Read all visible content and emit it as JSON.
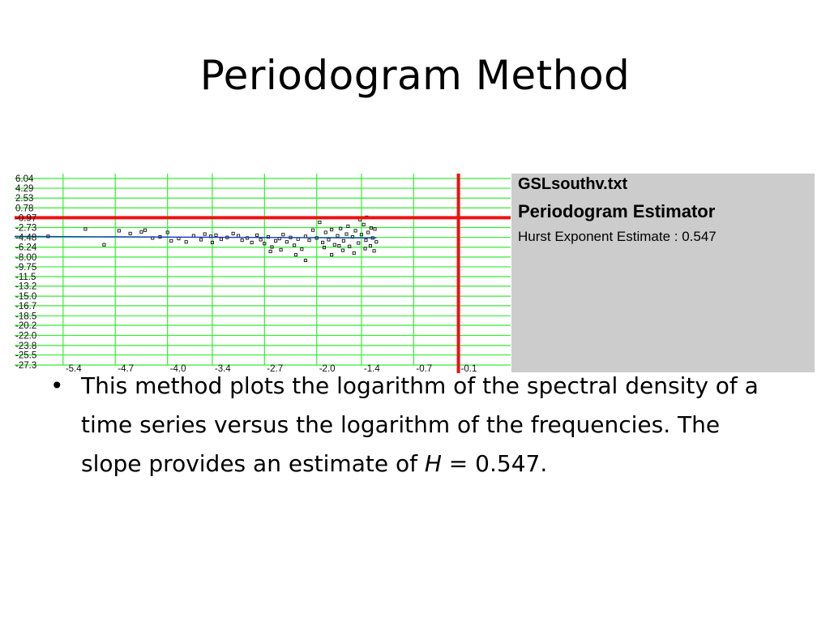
{
  "slide": {
    "title": "Periodogram Method"
  },
  "info_panel": {
    "filename": "GSLsouthv.txt",
    "method": "Periodogram Estimator",
    "result": "Hurst Exponent Estimate : 0.547"
  },
  "bullet": {
    "marker": "•",
    "text_before": "This method plots the logarithm of the spectral density of a time series versus the logarithm of the frequencies. The slope provides an estimate of ",
    "h_symbol": "H",
    "text_after": " = 0.547."
  },
  "chart_data": {
    "type": "scatter",
    "x_tick_labels": [
      "-5.4",
      "-4.7",
      "-4.0",
      "-3.4",
      "-2.7",
      "-2.0",
      "-1.4",
      "-0.7",
      "-0.1"
    ],
    "x_tick_values": [
      -5.4,
      -4.7,
      -4.0,
      -3.4,
      -2.7,
      -2.0,
      -1.4,
      -0.7,
      -0.1
    ],
    "y_tick_labels": [
      "6.04",
      "4.29",
      "2.53",
      "0.78",
      "-0.97",
      "-2.73",
      "-4.48",
      "-6.24",
      "-8.00",
      "-9.75",
      "-11.5",
      "-13.2",
      "-15.0",
      "-16.7",
      "-18.5",
      "-20.2",
      "-22.0",
      "-23.8",
      "-25.5",
      "-27.3"
    ],
    "xlim": [
      -6.05,
      0.6
    ],
    "ylim": [
      -27.3,
      6.04
    ],
    "grid": true,
    "crosshair": {
      "x": -0.1,
      "y": -0.97
    },
    "fit_line": [
      [
        -6.05,
        -4.3
      ],
      [
        -1.2,
        -4.6
      ]
    ],
    "points": [
      [
        -5.6,
        -4.3
      ],
      [
        -5.1,
        -3.0
      ],
      [
        -4.85,
        -5.8
      ],
      [
        -4.65,
        -3.3
      ],
      [
        -4.5,
        -3.8
      ],
      [
        -4.35,
        -3.5
      ],
      [
        -4.2,
        -4.6
      ],
      [
        -4.1,
        -4.4
      ],
      [
        -4.0,
        -3.6
      ],
      [
        -3.95,
        -5.1
      ],
      [
        -3.85,
        -4.7
      ],
      [
        -3.75,
        -5.3
      ],
      [
        -3.65,
        -4.2
      ],
      [
        -3.55,
        -4.9
      ],
      [
        -3.5,
        -3.9
      ],
      [
        -3.42,
        -4.3
      ],
      [
        -3.35,
        -4.1
      ],
      [
        -3.28,
        -4.8
      ],
      [
        -3.2,
        -4.5
      ],
      [
        -3.12,
        -3.8
      ],
      [
        -3.05,
        -4.2
      ],
      [
        -3.0,
        -5.0
      ],
      [
        -2.93,
        -4.6
      ],
      [
        -2.87,
        -5.4
      ],
      [
        -2.8,
        -4.1
      ],
      [
        -2.75,
        -4.9
      ],
      [
        -2.7,
        -5.6
      ],
      [
        -2.65,
        -4.4
      ],
      [
        -2.6,
        -6.2
      ],
      [
        -2.55,
        -5.1
      ],
      [
        -2.5,
        -4.7
      ],
      [
        -2.45,
        -4.0
      ],
      [
        -2.4,
        -5.3
      ],
      [
        -2.35,
        -4.5
      ],
      [
        -2.3,
        -5.9
      ],
      [
        -2.25,
        -4.8
      ],
      [
        -2.2,
        -6.6
      ],
      [
        -2.15,
        -4.3
      ],
      [
        -2.1,
        -5.0
      ],
      [
        -2.05,
        -3.2
      ],
      [
        -2.0,
        -4.6
      ],
      [
        -1.96,
        -1.8
      ],
      [
        -1.92,
        -5.4
      ],
      [
        -1.88,
        -3.6
      ],
      [
        -1.84,
        -4.9
      ],
      [
        -1.8,
        -3.1
      ],
      [
        -1.76,
        -5.8
      ],
      [
        -1.72,
        -4.2
      ],
      [
        -1.68,
        -2.9
      ],
      [
        -1.64,
        -5.1
      ],
      [
        -1.6,
        -3.9
      ],
      [
        -1.56,
        -6.1
      ],
      [
        -1.52,
        -4.4
      ],
      [
        -1.48,
        -3.3
      ],
      [
        -1.44,
        -5.5
      ],
      [
        -1.4,
        -4.0
      ],
      [
        -1.37,
        -2.2
      ],
      [
        -1.34,
        -5.0
      ],
      [
        -1.31,
        -3.6
      ],
      [
        -1.28,
        -6.0
      ],
      [
        -1.25,
        -4.6
      ],
      [
        -1.22,
        -3.0
      ],
      [
        -1.2,
        -5.3
      ],
      [
        -2.28,
        -7.6
      ],
      [
        -2.15,
        -8.6
      ],
      [
        -1.65,
        -6.8
      ],
      [
        -1.5,
        -7.3
      ],
      [
        -1.35,
        -6.5
      ],
      [
        -1.23,
        -6.9
      ],
      [
        -2.62,
        -7.0
      ],
      [
        -1.8,
        -7.6
      ],
      [
        -1.42,
        -1.3
      ],
      [
        -1.33,
        -0.9
      ],
      [
        -1.27,
        -2.8
      ],
      [
        -1.58,
        -2.5
      ],
      [
        -2.48,
        -6.7
      ],
      [
        -1.9,
        -6.3
      ],
      [
        -1.7,
        -6.0
      ],
      [
        -3.4,
        -5.4
      ],
      [
        -4.3,
        -3.2
      ]
    ]
  }
}
